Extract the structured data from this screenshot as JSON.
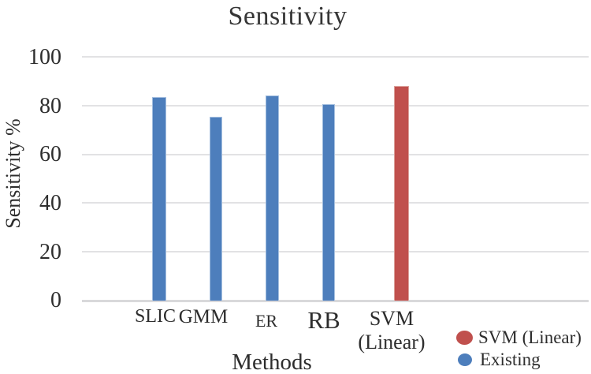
{
  "chart_data": {
    "type": "bar",
    "title": "Sensitivity",
    "xlabel": "Methods",
    "ylabel": "Sensitivity %",
    "ylim": [
      0,
      100
    ],
    "yticks": [
      0,
      20,
      40,
      60,
      80,
      100
    ],
    "grid": true,
    "legend_position": "bottom-right",
    "categories": [
      "SLIC",
      "GMM",
      "ER",
      "RB",
      "SVM (Linear)"
    ],
    "series": [
      {
        "name": "Existing",
        "color": "#4d7ebc",
        "border_color": "#a3bedf",
        "values": [
          83.5,
          75.5,
          84,
          80.5,
          null
        ]
      },
      {
        "name": "SVM (Linear)",
        "color": "#c0504d",
        "border_color": "#dba09a",
        "values": [
          null,
          null,
          null,
          null,
          88
        ]
      }
    ]
  },
  "legend": {
    "items": [
      {
        "label": "SVM (Linear)",
        "color": "#c0504d"
      },
      {
        "label": "Existing",
        "color": "#4d7ebc"
      }
    ]
  }
}
